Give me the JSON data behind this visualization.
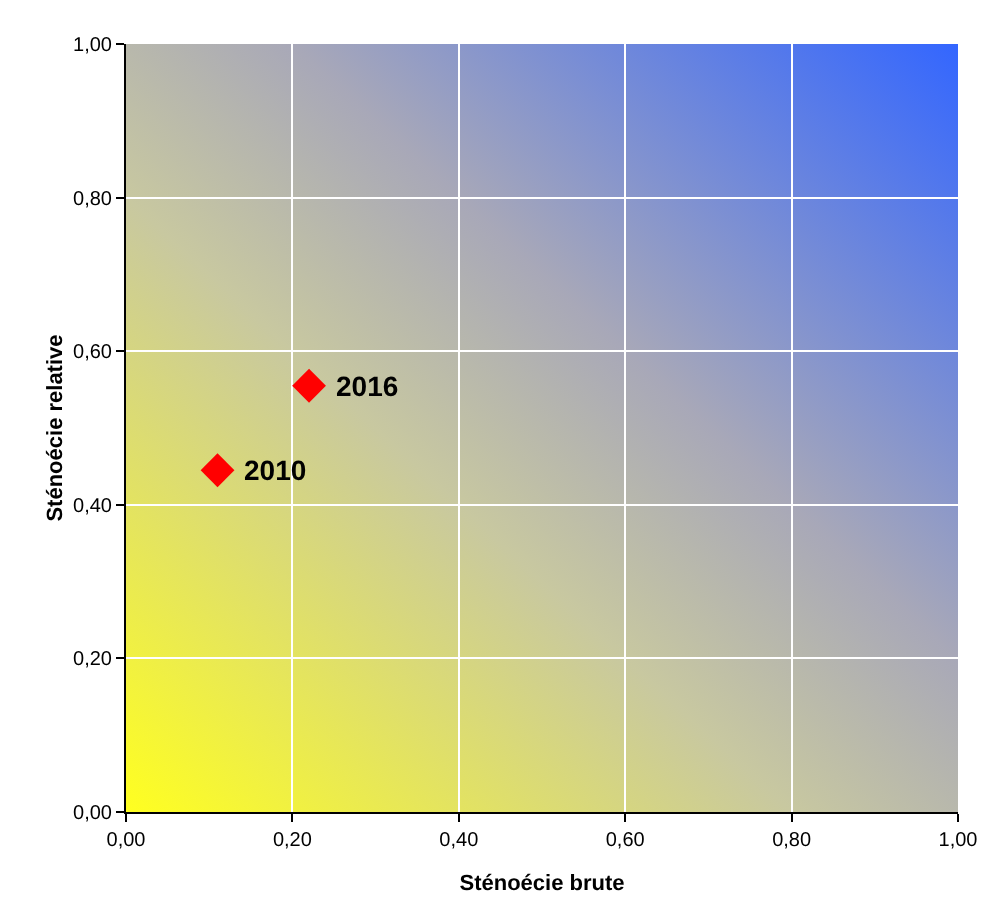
{
  "chart_data": {
    "type": "scatter",
    "xlabel": "Sténoécie brute",
    "ylabel": "Sténoécie relative",
    "x": [
      0.11,
      0.22
    ],
    "series": [
      {
        "color": "#ff0000",
        "values": [
          0.445,
          0.555
        ]
      }
    ],
    "marker": "diamond",
    "xlim": [
      0,
      1
    ],
    "ylim": [
      0,
      1
    ],
    "xticks": [
      {
        "value": 0,
        "label": "0,00"
      },
      {
        "value": 0.2,
        "label": "0,20"
      },
      {
        "value": 0.4,
        "label": "0,40"
      },
      {
        "value": 0.6,
        "label": "0,60"
      },
      {
        "value": 0.8,
        "label": "0,80"
      },
      {
        "value": 1,
        "label": "1,00"
      }
    ],
    "yticks": [
      {
        "value": 0,
        "label": "0,00"
      },
      {
        "value": 0.2,
        "label": "0,20"
      },
      {
        "value": 0.4,
        "label": "0,40"
      },
      {
        "value": 0.6,
        "label": "0,60"
      },
      {
        "value": 0.8,
        "label": "0,80"
      },
      {
        "value": 1,
        "label": "1,00"
      }
    ],
    "grid": true,
    "annotations": [
      {
        "text": "2010",
        "x": 0.11,
        "y": 0.445
      },
      {
        "text": "2016",
        "x": 0.22,
        "y": 0.555
      }
    ]
  }
}
